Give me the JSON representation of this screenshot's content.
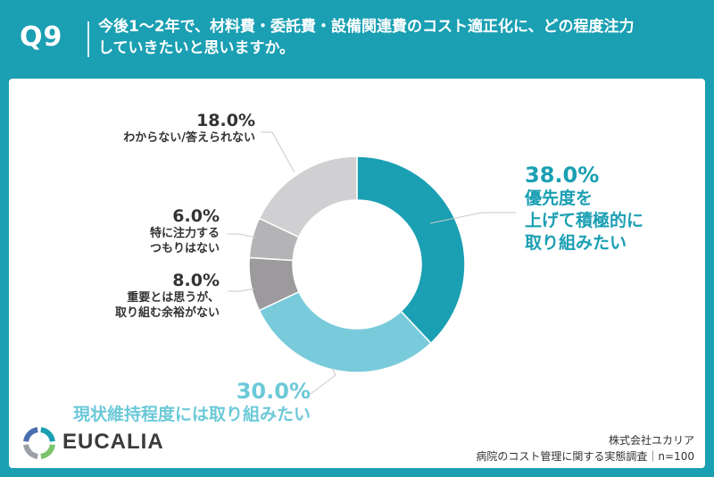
{
  "header": {
    "question_number": "Q9",
    "title_line1": "今後1〜2年で、材料費・委託費・設備関連費のコスト適正化に、どの程度注力",
    "title_line2": "していきたいと思いますか。"
  },
  "chart_data": {
    "type": "pie",
    "donut": true,
    "slices": [
      {
        "label": "優先度を上げて積極的に取り組みたい",
        "label_lines": [
          "優先度を",
          "上げて積極的に",
          "取り組みたい"
        ],
        "value": 38.0,
        "value_text": "38.0%",
        "color": "#1a9fb3"
      },
      {
        "label": "現状維持程度には取り組みたい",
        "label_lines": [
          "現状維持程度には取り組みたい"
        ],
        "value": 30.0,
        "value_text": "30.0%",
        "color": "#79cbdb"
      },
      {
        "label": "重要とは思うが、取り組む余裕がない",
        "label_lines": [
          "重要とは思うが、",
          "取り組む余裕がない"
        ],
        "value": 8.0,
        "value_text": "8.0%",
        "color": "#9c9a9c"
      },
      {
        "label": "特に注力するつもりはない",
        "label_lines": [
          "特に注力する",
          "つもりはない"
        ],
        "value": 6.0,
        "value_text": "6.0%",
        "color": "#b4b3b5"
      },
      {
        "label": "わからない/答えられない",
        "label_lines": [
          "わからない/答えられない"
        ],
        "value": 18.0,
        "value_text": "18.0%",
        "color": "#d0cfd1"
      }
    ]
  },
  "footer": {
    "brand": "EUCALIA",
    "company": "株式会社ユカリア",
    "survey": "病院のコスト管理に関する実態調査｜n=100"
  },
  "colors": {
    "background": "#1a9fb3",
    "card": "#ffffff",
    "leader_line": "#c9c9c9",
    "logo": [
      "#1a9fb3",
      "#7bc36a",
      "#9aa0a6",
      "#4a6fb0"
    ]
  }
}
